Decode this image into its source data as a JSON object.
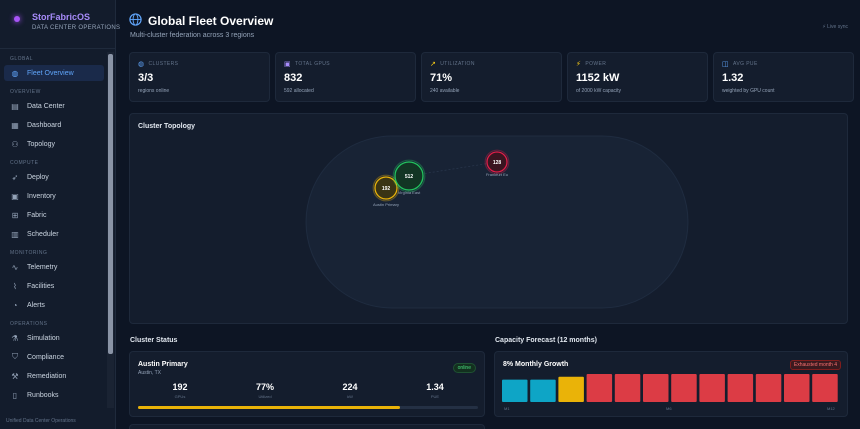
{
  "brand": {
    "title": "StorFabricOS",
    "subtitle": "DATA CENTER OPERATIONS"
  },
  "nav": {
    "sections": [
      {
        "label": "GLOBAL",
        "items": [
          {
            "label": "Fleet Overview",
            "icon": "globe-icon",
            "active": true
          }
        ]
      },
      {
        "label": "OVERVIEW",
        "items": [
          {
            "label": "Data Center",
            "icon": "server-icon"
          },
          {
            "label": "Dashboard",
            "icon": "dashboard-icon"
          },
          {
            "label": "Topology",
            "icon": "topology-icon"
          }
        ]
      },
      {
        "label": "COMPUTE",
        "items": [
          {
            "label": "Deploy",
            "icon": "rocket-icon"
          },
          {
            "label": "Inventory",
            "icon": "box-icon"
          },
          {
            "label": "Fabric",
            "icon": "fabric-icon"
          },
          {
            "label": "Scheduler",
            "icon": "calendar-icon"
          }
        ]
      },
      {
        "label": "MONITORING",
        "items": [
          {
            "label": "Telemetry",
            "icon": "activity-icon"
          },
          {
            "label": "Facilities",
            "icon": "thermometer-icon"
          },
          {
            "label": "Alerts",
            "icon": "bell-icon"
          }
        ]
      },
      {
        "label": "OPERATIONS",
        "items": [
          {
            "label": "Simulation",
            "icon": "flask-icon"
          },
          {
            "label": "Compliance",
            "icon": "shield-icon"
          },
          {
            "label": "Remediation",
            "icon": "wrench-icon"
          },
          {
            "label": "Runbooks",
            "icon": "book-icon"
          }
        ]
      }
    ],
    "footer": "Unified Data Center Operations"
  },
  "header": {
    "title": "Global Fleet Overview",
    "subtitle": "Multi-cluster federation across 3 regions",
    "sync_label": "Live sync"
  },
  "stats": [
    {
      "label": "CLUSTERS",
      "icon": "globe-icon",
      "color": "#60a5fa",
      "value": "3/3",
      "note": "regions online"
    },
    {
      "label": "TOTAL GPUS",
      "icon": "chip-icon",
      "color": "#a78bfa",
      "value": "832",
      "note": "592 allocated"
    },
    {
      "label": "UTILIZATION",
      "icon": "trend-icon",
      "color": "#facc15",
      "value": "71%",
      "note": "240 available"
    },
    {
      "label": "POWER",
      "icon": "bolt-icon",
      "color": "#facc15",
      "value": "1152 kW",
      "note": "of 2000 kW capacity"
    },
    {
      "label": "AVG PUE",
      "icon": "gauge-icon",
      "color": "#60a5fa",
      "value": "1.32",
      "note": "weighted by GPU count"
    }
  ],
  "topology": {
    "title": "Cluster Topology",
    "nodes": [
      {
        "name": "Austin Primary",
        "value": "192",
        "color": "#eab308",
        "fill": "#3a3414"
      },
      {
        "name": "Virginia East",
        "value": "512",
        "color": "#22c55e",
        "fill": "#123524"
      },
      {
        "name": "Frankfurt Eu",
        "value": "128",
        "color": "#e11d48",
        "fill": "#3a1521"
      }
    ]
  },
  "cluster_status": {
    "title": "Cluster Status",
    "cards": [
      {
        "name": "Austin Primary",
        "location": "Austin, TX",
        "status": "online",
        "metrics": [
          {
            "value": "192",
            "label": "GPUs"
          },
          {
            "value": "77%",
            "label": "Utilized"
          },
          {
            "value": "224",
            "label": "kW"
          },
          {
            "value": "1.34",
            "label": "PUE"
          }
        ],
        "utilization": 0.77,
        "bar_color": "#eab308"
      }
    ]
  },
  "forecast": {
    "title": "Capacity Forecast (12 months)",
    "card_title": "8% Monthly Growth",
    "badge": "Exhausted month 4",
    "ticks": [
      "M1",
      "M6",
      "M12"
    ],
    "bars": [
      {
        "value": 0.8,
        "color": "#0ea5c6"
      },
      {
        "value": 0.8,
        "color": "#0ea5c6"
      },
      {
        "value": 0.9,
        "color": "#eab308"
      },
      {
        "value": 1.0,
        "color": "#dc3c45"
      },
      {
        "value": 1.0,
        "color": "#dc3c45"
      },
      {
        "value": 1.0,
        "color": "#dc3c45"
      },
      {
        "value": 1.0,
        "color": "#dc3c45"
      },
      {
        "value": 1.0,
        "color": "#dc3c45"
      },
      {
        "value": 1.0,
        "color": "#dc3c45"
      },
      {
        "value": 1.0,
        "color": "#dc3c45"
      },
      {
        "value": 1.0,
        "color": "#dc3c45"
      },
      {
        "value": 1.0,
        "color": "#dc3c45"
      }
    ]
  }
}
